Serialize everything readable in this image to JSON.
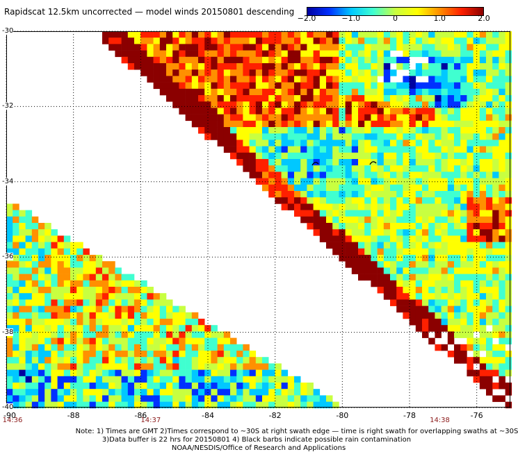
{
  "title": "Rapidscat 12.5km uncorrected — model winds 20150801 descending",
  "colorbar": {
    "ticks": [
      "−2.0",
      "−1.0",
      "0",
      "1.0",
      "2.0"
    ],
    "tick_values": [
      -2.0,
      -1.0,
      0,
      1.0,
      2.0
    ],
    "range": [
      -2.0,
      2.0
    ],
    "colors": [
      "#0000a0",
      "#0030ff",
      "#00c8ff",
      "#40ffd0",
      "#c8ff40",
      "#ffff00",
      "#ff9000",
      "#ff2000",
      "#8b0000"
    ]
  },
  "map": {
    "lat_range": [
      -40,
      -30
    ],
    "lon_range": [
      -90,
      -75
    ],
    "lat_labels": [
      "-30",
      "-32",
      "-34",
      "-36",
      "-38",
      "-40"
    ],
    "lat_values": [
      -30,
      -32,
      -34,
      -36,
      -38,
      -40
    ],
    "lon_labels": [
      "-90",
      "-88",
      "-86",
      "-84",
      "-82",
      "-80",
      "-78",
      "-76"
    ],
    "lon_values": [
      -90,
      -88,
      -86,
      -84,
      -82,
      -80,
      -78,
      -76
    ],
    "grid": "dotted"
  },
  "swath_times": [
    {
      "label": "14:36",
      "lon": -90
    },
    {
      "label": "14:37",
      "lon": -85.7
    },
    {
      "label": "14:38",
      "lon": -77.1
    }
  ],
  "notes": [
    "Note: 1) Times are GMT 2)Times correspond to ~30S at right swath edge — time is right swath for overlapping swaths at ~30S",
    "3)Data buffer is 22 hrs for 20150801 4) Black barbs indicate possible rain contamination",
    "NOAA/NESDIS/Office of Research and Applications"
  ]
}
